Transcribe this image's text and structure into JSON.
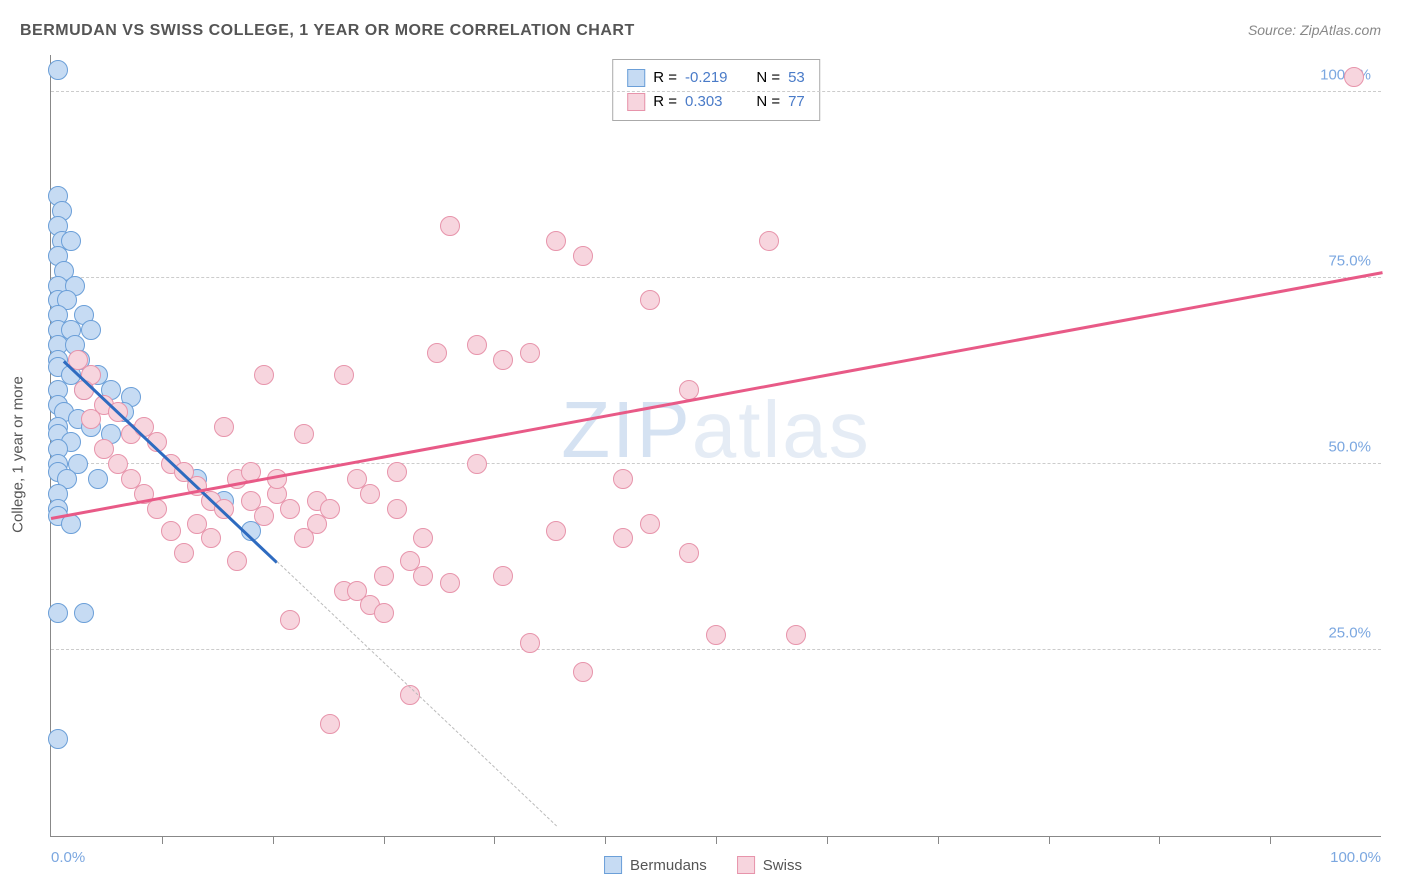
{
  "title": "BERMUDAN VS SWISS COLLEGE, 1 YEAR OR MORE CORRELATION CHART",
  "source": "Source: ZipAtlas.com",
  "ylabel": "College, 1 year or more",
  "watermark": "ZIPatlas",
  "chart": {
    "type": "scatter",
    "xlim": [
      0,
      100
    ],
    "ylim": [
      0,
      105
    ],
    "grid_color": "#cccccc",
    "background": "#ffffff",
    "axis_color": "#888888",
    "yticks": [
      {
        "value": 25,
        "label": "25.0%"
      },
      {
        "value": 50,
        "label": "50.0%"
      },
      {
        "value": 75,
        "label": "75.0%"
      },
      {
        "value": 100,
        "label": "100.0%"
      }
    ],
    "xtick_positions": [
      8.33,
      16.67,
      25,
      33.33,
      41.67,
      50,
      58.33,
      66.67,
      75,
      83.33,
      91.67
    ],
    "xlabels": [
      {
        "value": 0,
        "label": "0.0%",
        "align": "left"
      },
      {
        "value": 100,
        "label": "100.0%",
        "align": "right"
      }
    ],
    "tick_label_color": "#7ba7e0",
    "point_radius": 10,
    "series": [
      {
        "name": "Bermudans",
        "fill": "#c6dbf3",
        "stroke": "#6b9fd8",
        "line_color": "#2e6bc0",
        "r_value": "-0.219",
        "n_value": "53",
        "trend": {
          "x1": 1,
          "y1": 64,
          "x2": 17,
          "y2": 37
        },
        "trend_ext": {
          "x1": 17,
          "y1": 37,
          "x2": 38,
          "y2": 1.5
        },
        "points": [
          [
            0.5,
            103
          ],
          [
            0.5,
            86
          ],
          [
            0.8,
            84
          ],
          [
            0.5,
            82
          ],
          [
            0.8,
            80
          ],
          [
            1.5,
            80
          ],
          [
            0.5,
            78
          ],
          [
            1.0,
            76
          ],
          [
            0.5,
            74
          ],
          [
            1.8,
            74
          ],
          [
            0.5,
            72
          ],
          [
            1.2,
            72
          ],
          [
            0.5,
            70
          ],
          [
            2.5,
            70
          ],
          [
            0.5,
            68
          ],
          [
            1.5,
            68
          ],
          [
            3.0,
            68
          ],
          [
            0.5,
            66
          ],
          [
            1.8,
            66
          ],
          [
            0.5,
            64
          ],
          [
            2.2,
            64
          ],
          [
            0.5,
            63
          ],
          [
            1.5,
            62
          ],
          [
            3.5,
            62
          ],
          [
            0.5,
            60
          ],
          [
            2.5,
            60
          ],
          [
            0.5,
            58
          ],
          [
            4.5,
            60
          ],
          [
            1.0,
            57
          ],
          [
            6.0,
            59
          ],
          [
            2.0,
            56
          ],
          [
            0.5,
            55
          ],
          [
            3.0,
            55
          ],
          [
            0.5,
            54
          ],
          [
            1.5,
            53
          ],
          [
            0.5,
            52
          ],
          [
            5.5,
            57
          ],
          [
            0.5,
            50
          ],
          [
            2.0,
            50
          ],
          [
            0.5,
            49
          ],
          [
            1.2,
            48
          ],
          [
            0.5,
            46
          ],
          [
            3.5,
            48
          ],
          [
            0.5,
            44
          ],
          [
            0.5,
            43
          ],
          [
            1.5,
            42
          ],
          [
            0.5,
            30
          ],
          [
            2.5,
            30
          ],
          [
            0.5,
            13
          ],
          [
            11,
            48
          ],
          [
            13,
            45
          ],
          [
            15,
            41
          ],
          [
            4.5,
            54
          ]
        ]
      },
      {
        "name": "Swiss",
        "fill": "#f7d5de",
        "stroke": "#e794ab",
        "line_color": "#e85a87",
        "r_value": "0.303",
        "n_value": "77",
        "trend": {
          "x1": 0,
          "y1": 43,
          "x2": 100,
          "y2": 76
        },
        "points": [
          [
            98,
            102
          ],
          [
            2,
            64
          ],
          [
            3,
            62
          ],
          [
            2.5,
            60
          ],
          [
            4,
            58
          ],
          [
            3,
            56
          ],
          [
            5,
            57
          ],
          [
            6,
            54
          ],
          [
            4,
            52
          ],
          [
            7,
            55
          ],
          [
            5,
            50
          ],
          [
            8,
            53
          ],
          [
            6,
            48
          ],
          [
            9,
            50
          ],
          [
            7,
            46
          ],
          [
            10,
            49
          ],
          [
            8,
            44
          ],
          [
            11,
            47
          ],
          [
            9,
            41
          ],
          [
            12,
            45
          ],
          [
            10,
            38
          ],
          [
            13,
            44
          ],
          [
            11,
            42
          ],
          [
            14,
            48
          ],
          [
            12,
            40
          ],
          [
            15,
            45
          ],
          [
            13,
            55
          ],
          [
            16,
            43
          ],
          [
            14,
            37
          ],
          [
            17,
            46
          ],
          [
            15,
            49
          ],
          [
            18,
            44
          ],
          [
            16,
            62
          ],
          [
            19,
            40
          ],
          [
            17,
            48
          ],
          [
            20,
            45
          ],
          [
            18,
            29
          ],
          [
            21,
            44
          ],
          [
            19,
            54
          ],
          [
            22,
            33
          ],
          [
            20,
            42
          ],
          [
            23,
            48
          ],
          [
            21,
            15
          ],
          [
            24,
            46
          ],
          [
            22,
            62
          ],
          [
            25,
            35
          ],
          [
            23,
            33
          ],
          [
            26,
            49
          ],
          [
            24,
            31
          ],
          [
            27,
            37
          ],
          [
            25,
            30
          ],
          [
            28,
            35
          ],
          [
            26,
            44
          ],
          [
            29,
            65
          ],
          [
            27,
            19
          ],
          [
            30,
            82
          ],
          [
            28,
            40
          ],
          [
            32,
            66
          ],
          [
            30,
            34
          ],
          [
            34,
            64
          ],
          [
            32,
            50
          ],
          [
            36,
            26
          ],
          [
            34,
            35
          ],
          [
            38,
            80
          ],
          [
            36,
            65
          ],
          [
            40,
            22
          ],
          [
            38,
            41
          ],
          [
            43,
            40
          ],
          [
            40,
            78
          ],
          [
            45,
            72
          ],
          [
            43,
            48
          ],
          [
            48,
            60
          ],
          [
            45,
            42
          ],
          [
            50,
            27
          ],
          [
            48,
            38
          ],
          [
            54,
            80
          ],
          [
            56,
            27
          ]
        ]
      }
    ]
  },
  "legend": {
    "items": [
      {
        "name": "Bermudans",
        "fill": "#c6dbf3",
        "stroke": "#6b9fd8"
      },
      {
        "name": "Swiss",
        "fill": "#f7d5de",
        "stroke": "#e794ab"
      }
    ]
  }
}
